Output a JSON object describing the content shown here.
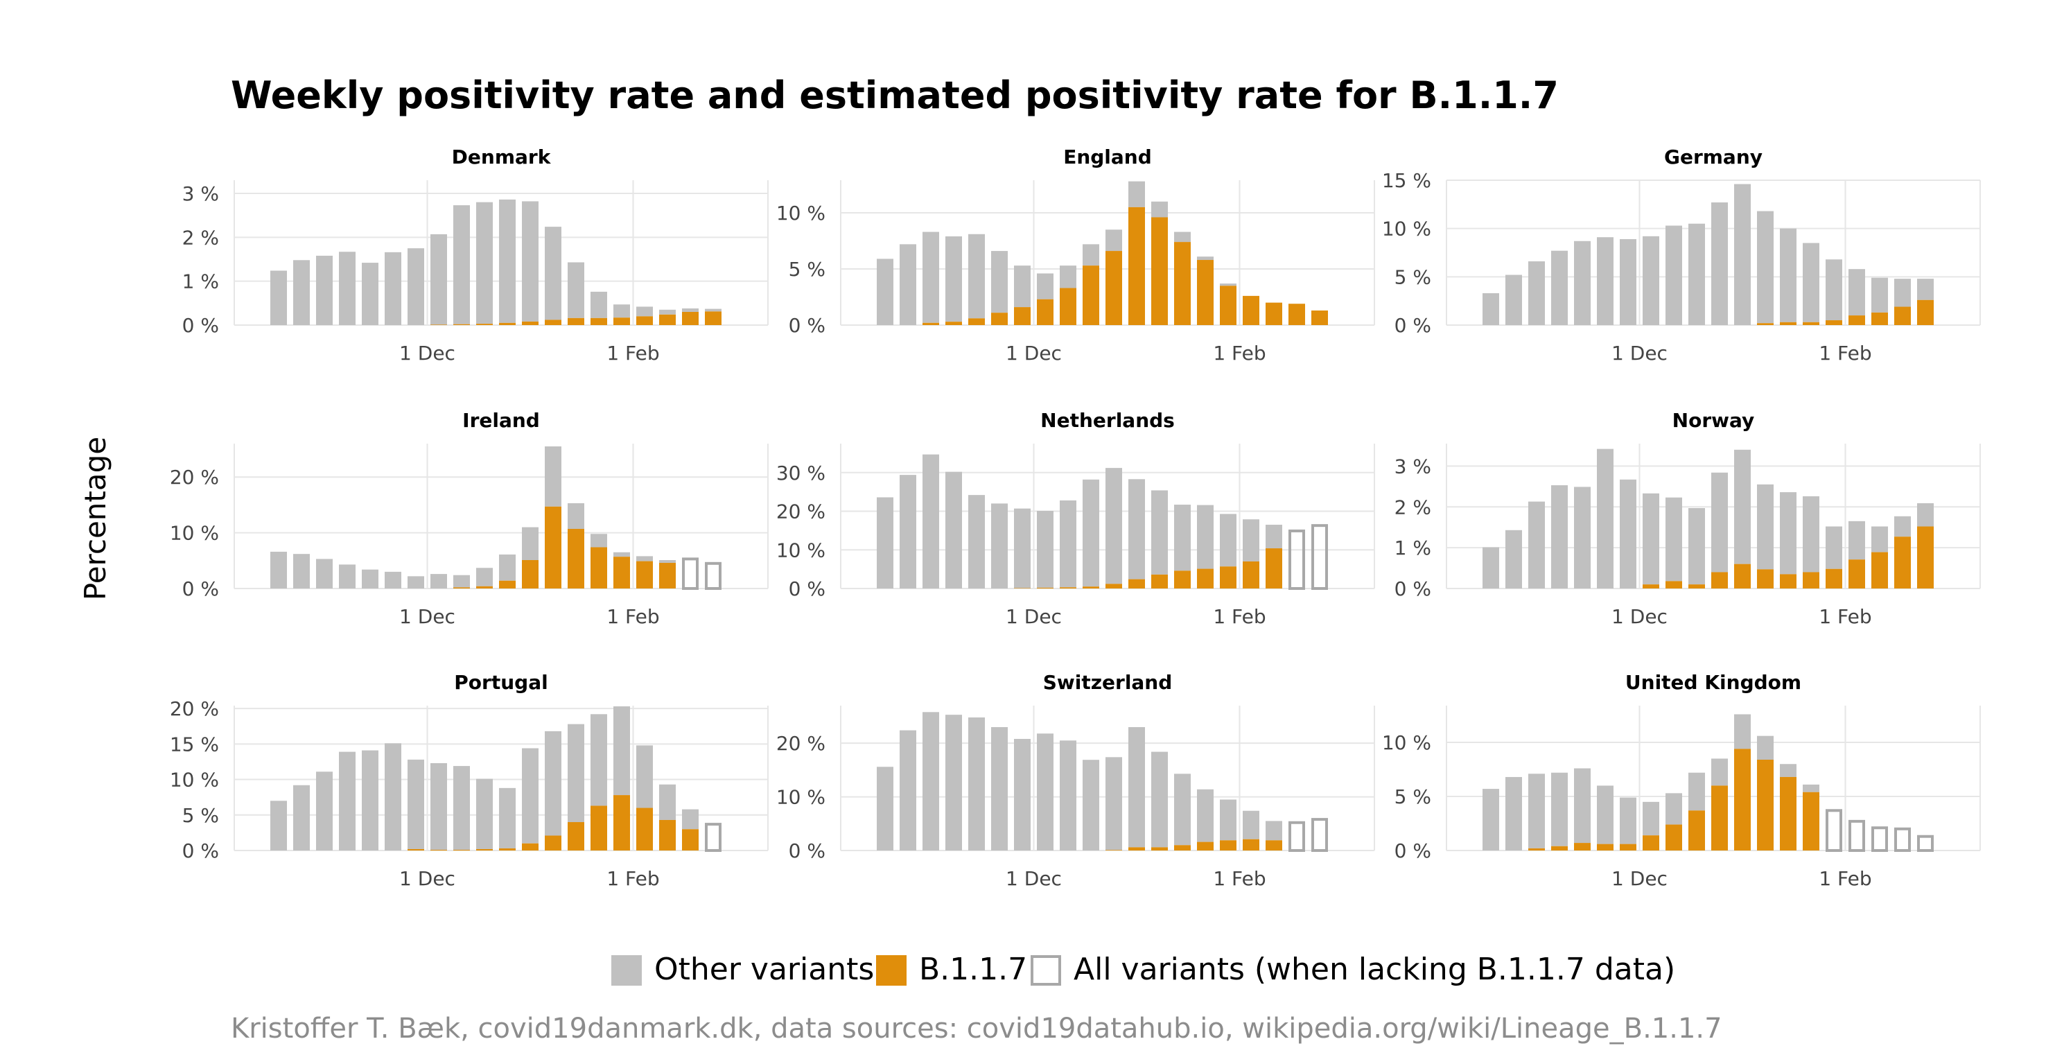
{
  "chart_data": {
    "type": "bar",
    "title": "Weekly positivity rate and estimated positivity rate for B.1.1.7",
    "ylabel": "Percentage",
    "caption": "Kristoffer T. Bæk, covid19danmark.dk, data sources: covid19datahub.io, wikipedia.org/wiki/Lineage_B.1.1.7",
    "x_ticks": [
      "1 Dec",
      "1 Feb"
    ],
    "x_tick_weeks": [
      6.5,
      15.5
    ],
    "colors": {
      "other": "#c0c0c0",
      "b117": "#e08e0b",
      "all_outline": "#a8a8a8",
      "grid": "#e6e6e6"
    },
    "legend": [
      {
        "label": "Other variants",
        "kind": "other"
      },
      {
        "label": "B.1.1.7",
        "kind": "b117"
      },
      {
        "label": "All variants (when lacking B.1.1.7 data)",
        "kind": "all"
      }
    ],
    "panels": [
      {
        "name": "Denmark",
        "y_max": 3.3,
        "y_ticks": [
          0,
          1,
          2,
          3
        ],
        "y_tick_labels": [
          "0 %",
          "1 %",
          "2 %",
          "3 %"
        ],
        "total": [
          1.24,
          1.48,
          1.58,
          1.67,
          1.42,
          1.66,
          1.75,
          2.07,
          2.73,
          2.8,
          2.86,
          2.82,
          2.24,
          1.43,
          0.76,
          0.47,
          0.42,
          0.35,
          0.38,
          0.37
        ],
        "b117": [
          0,
          0,
          0,
          0,
          0,
          0,
          0,
          0.01,
          0.02,
          0.03,
          0.05,
          0.08,
          0.12,
          0.16,
          0.16,
          0.17,
          0.2,
          0.24,
          0.3,
          0.31
        ],
        "all_only": []
      },
      {
        "name": "England",
        "y_max": 12.9,
        "y_ticks": [
          0,
          5,
          10
        ],
        "y_tick_labels": [
          "0 %",
          "5 %",
          "10 %"
        ],
        "total": [
          5.9,
          7.2,
          8.3,
          7.9,
          8.1,
          6.6,
          5.3,
          4.6,
          5.3,
          7.2,
          8.5,
          12.8,
          11.0,
          8.3,
          6.1,
          3.7,
          2.6,
          2.0,
          1.9,
          1.3
        ],
        "b117": [
          0,
          0,
          0.2,
          0.3,
          0.6,
          1.1,
          1.6,
          2.3,
          3.3,
          5.3,
          6.6,
          10.5,
          9.6,
          7.4,
          5.8,
          3.5,
          2.6,
          2.0,
          1.9,
          1.3
        ],
        "all_only": []
      },
      {
        "name": "Germany",
        "y_max": 15,
        "y_ticks": [
          0,
          5,
          10,
          15
        ],
        "y_tick_labels": [
          "0 %",
          "5 %",
          "10 %",
          "15 %"
        ],
        "total": [
          3.3,
          5.2,
          6.6,
          7.7,
          8.7,
          9.1,
          8.9,
          9.2,
          10.3,
          10.5,
          12.7,
          14.6,
          11.8,
          10.0,
          8.5,
          6.8,
          5.8,
          4.9,
          4.8,
          4.8
        ],
        "b117": [
          0,
          0,
          0,
          0,
          0,
          0,
          0,
          0,
          0,
          0,
          0,
          0,
          0.2,
          0.3,
          0.3,
          0.5,
          1.0,
          1.3,
          1.9,
          2.6
        ],
        "all_only": []
      },
      {
        "name": "Ireland",
        "y_max": 26,
        "y_ticks": [
          0,
          10,
          20
        ],
        "y_tick_labels": [
          "0 %",
          "10 %",
          "20 %"
        ],
        "total": [
          6.6,
          6.2,
          5.3,
          4.3,
          3.4,
          3.0,
          2.2,
          2.6,
          2.4,
          3.7,
          6.1,
          11.0,
          25.5,
          15.3,
          9.8,
          6.5,
          5.8,
          5.1,
          5.3,
          4.5
        ],
        "b117": [
          0,
          0,
          0,
          0,
          0,
          0,
          0,
          0,
          0.2,
          0.4,
          1.4,
          5.1,
          14.7,
          10.7,
          7.4,
          5.7,
          4.9,
          4.6,
          0,
          0
        ],
        "all_only": [
          18,
          19
        ]
      },
      {
        "name": "Netherlands",
        "y_max": 37.5,
        "y_ticks": [
          0,
          10,
          20,
          30
        ],
        "y_tick_labels": [
          "0 %",
          "10 %",
          "20 %",
          "30 %"
        ],
        "total": [
          23.6,
          29.4,
          34.7,
          30.2,
          24.2,
          22.0,
          20.7,
          20.1,
          22.8,
          28.2,
          31.2,
          28.3,
          25.4,
          21.7,
          21.6,
          19.3,
          17.9,
          16.5,
          14.9,
          16.3
        ],
        "b117": [
          0,
          0,
          0,
          0,
          0,
          0,
          0.1,
          0.2,
          0.3,
          0.5,
          1.2,
          2.4,
          3.6,
          4.6,
          5.1,
          5.7,
          7.0,
          10.4,
          0,
          0
        ],
        "all_only": [
          18,
          19
        ]
      },
      {
        "name": "Norway",
        "y_max": 3.55,
        "y_ticks": [
          0,
          1,
          2,
          3
        ],
        "y_tick_labels": [
          "0 %",
          "1 %",
          "2 %",
          "3 %"
        ],
        "total": [
          1.01,
          1.43,
          2.13,
          2.53,
          2.49,
          3.42,
          2.67,
          2.33,
          2.23,
          1.97,
          2.84,
          3.4,
          2.55,
          2.36,
          2.26,
          1.52,
          1.65,
          1.52,
          1.77,
          2.09
        ],
        "b117": [
          0,
          0,
          0,
          0,
          0,
          0,
          0,
          0.1,
          0.18,
          0.1,
          0.4,
          0.6,
          0.47,
          0.35,
          0.4,
          0.48,
          0.71,
          0.89,
          1.27,
          1.52
        ],
        "all_only": []
      },
      {
        "name": "Portugal",
        "y_max": 20.4,
        "y_ticks": [
          0,
          5,
          10,
          15,
          20
        ],
        "y_tick_labels": [
          "0 %",
          "5 %",
          "10 %",
          "15 %",
          "20 %"
        ],
        "total": [
          7.0,
          9.2,
          11.1,
          13.9,
          14.1,
          15.1,
          12.8,
          12.3,
          11.9,
          10.1,
          8.8,
          14.4,
          16.8,
          17.8,
          19.2,
          20.3,
          14.8,
          9.3,
          5.8,
          3.7
        ],
        "b117": [
          0,
          0,
          0,
          0,
          0,
          0,
          0.2,
          0.1,
          0.1,
          0.2,
          0.3,
          1.0,
          2.1,
          4.0,
          6.3,
          7.8,
          6.0,
          4.3,
          3.0,
          0
        ],
        "all_only": [
          19
        ]
      },
      {
        "name": "Switzerland",
        "y_max": 27,
        "y_ticks": [
          0,
          10,
          20
        ],
        "y_tick_labels": [
          "0 %",
          "10 %",
          "20 %"
        ],
        "total": [
          15.6,
          22.4,
          25.8,
          25.3,
          24.8,
          23.0,
          20.8,
          21.8,
          20.5,
          16.9,
          17.4,
          23.0,
          18.4,
          14.3,
          11.4,
          9.5,
          7.4,
          5.5,
          5.2,
          5.8
        ],
        "b117": [
          0,
          0,
          0,
          0,
          0,
          0,
          0,
          0,
          0,
          0,
          0.1,
          0.6,
          0.6,
          1.0,
          1.6,
          1.9,
          2.1,
          1.9,
          0,
          0
        ],
        "all_only": [
          18,
          19
        ]
      },
      {
        "name": "United Kingdom",
        "y_max": 13.4,
        "y_ticks": [
          0,
          5,
          10
        ],
        "y_tick_labels": [
          "0 %",
          "5 %",
          "10 %"
        ],
        "total": [
          5.7,
          6.8,
          7.1,
          7.2,
          7.6,
          6.0,
          4.9,
          4.5,
          5.3,
          7.2,
          8.5,
          12.6,
          10.6,
          8.0,
          6.1,
          3.7,
          2.7,
          2.1,
          2.0,
          1.3
        ],
        "b117": [
          0,
          0,
          0.2,
          0.4,
          0.7,
          0.6,
          0.6,
          1.4,
          2.4,
          3.7,
          6.0,
          9.4,
          8.4,
          6.8,
          5.4,
          0,
          0,
          0,
          0,
          0
        ],
        "all_only": [
          15,
          16,
          17,
          18,
          19
        ]
      }
    ]
  }
}
